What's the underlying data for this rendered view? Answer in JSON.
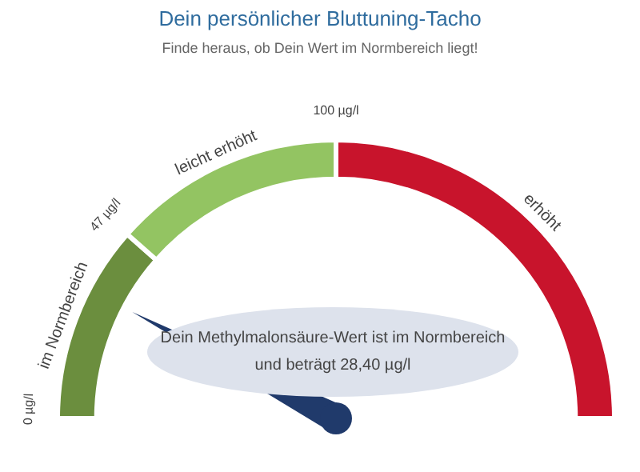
{
  "chart_data": {
    "type": "donut",
    "title": "Dein persönlicher Bluttuning-Tacho",
    "subtitle": "Finde heraus, ob Dein Wert im Normbereich liegt!",
    "categories": [
      "im Normbereich",
      "leicht erhöht",
      "erhöht"
    ],
    "values": [
      23,
      27,
      50
    ],
    "colors": [
      "#6b8e3e",
      "#93c462",
      "#c8142c"
    ],
    "needle": "im Normbereich",
    "annotations": [
      "0 µg/l",
      "47 µg/l",
      "100 µg/l",
      "Dein Methylmalonsäure-Wert ist im Normbereich",
      "und beträgt 28,40 µg/l"
    ],
    "legend": false
  }
}
